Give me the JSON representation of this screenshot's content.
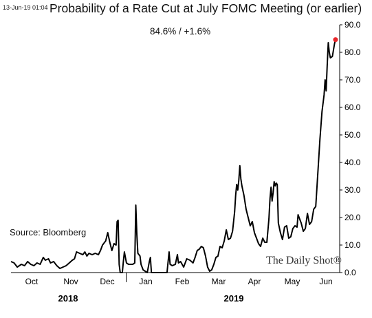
{
  "timestamp": "13-Jun-19 01:04",
  "title": "Probability of a Rate Cut at July FOMC Meeting (or earlier)",
  "subtitle": "84.6%  /  +1.6%",
  "source": "Source: Bloomberg",
  "brand": "The Daily Shot®",
  "colors": {
    "line": "#000000",
    "latest_marker": "#e8262b",
    "axis": "#000000"
  },
  "chart_data": {
    "type": "line",
    "title": "Probability of a Rate Cut at July FOMC Meeting (or earlier)",
    "xlabel": "",
    "ylabel": "",
    "y_axis_position": "right",
    "ylim": [
      0,
      90
    ],
    "y_ticks": [
      "0.0",
      "10.0",
      "20.0",
      "30.0",
      "40.0",
      "50.0",
      "60.0",
      "70.0",
      "80.0",
      "90.0"
    ],
    "x_month_labels": [
      "Oct",
      "Nov",
      "Dec",
      "Jan",
      "Feb",
      "Mar",
      "Apr",
      "May",
      "Jun"
    ],
    "x_year_labels": [
      "2018",
      "2019"
    ],
    "grid": false,
    "latest_value": 84.6,
    "series": [
      {
        "values": [
          [
            0,
            4.0
          ],
          [
            3,
            3.5
          ],
          [
            6,
            2.0
          ],
          [
            10,
            3.0
          ],
          [
            13,
            2.5
          ],
          [
            16,
            4.0
          ],
          [
            19,
            3.0
          ],
          [
            22,
            2.5
          ],
          [
            25,
            3.5
          ],
          [
            28,
            3.0
          ],
          [
            31,
            5.5
          ],
          [
            33,
            4.5
          ],
          [
            36,
            5.0
          ],
          [
            38,
            3.5
          ],
          [
            41,
            4.0
          ],
          [
            44,
            2.5
          ],
          [
            47,
            1.5
          ],
          [
            50,
            2.0
          ],
          [
            53,
            2.5
          ],
          [
            56,
            3.5
          ],
          [
            59,
            4.5
          ],
          [
            61,
            5.0
          ],
          [
            63,
            7.5
          ],
          [
            66,
            7.0
          ],
          [
            69,
            6.5
          ],
          [
            71,
            7.5
          ],
          [
            73,
            6.0
          ],
          [
            75,
            7.0
          ],
          [
            78,
            6.5
          ],
          [
            81,
            7.0
          ],
          [
            84,
            6.5
          ],
          [
            86,
            8.0
          ],
          [
            88,
            10.0
          ],
          [
            91,
            11.5
          ],
          [
            93,
            14.5
          ],
          [
            95,
            11.0
          ],
          [
            97,
            8.0
          ],
          [
            99,
            10.5
          ],
          [
            101,
            10.0
          ],
          [
            102,
            18.5
          ],
          [
            103,
            19.0
          ],
          [
            104,
            3.0
          ],
          [
            105,
            0.0
          ],
          [
            107,
            0.0
          ],
          [
            108,
            4.0
          ],
          [
            109,
            7.5
          ],
          [
            111,
            3.5
          ],
          [
            113,
            3.0
          ],
          [
            115,
            3.0
          ],
          [
            117,
            3.0
          ],
          [
            119,
            3.5
          ],
          [
            120,
            24.5
          ],
          [
            121,
            14.0
          ],
          [
            122,
            7.0
          ],
          [
            124,
            6.0
          ],
          [
            125,
            3.0
          ],
          [
            127,
            1.0
          ],
          [
            129,
            0.5
          ],
          [
            131,
            0.0
          ],
          [
            133,
            4.0
          ],
          [
            134,
            5.5
          ],
          [
            135,
            0.0
          ],
          [
            140,
            0.0
          ],
          [
            145,
            0.0
          ],
          [
            150,
            0.0
          ],
          [
            152,
            7.5
          ],
          [
            153,
            3.0
          ],
          [
            155,
            2.5
          ],
          [
            158,
            3.0
          ],
          [
            160,
            6.5
          ],
          [
            161,
            3.5
          ],
          [
            163,
            4.0
          ],
          [
            166,
            2.0
          ],
          [
            169,
            5.0
          ],
          [
            172,
            4.5
          ],
          [
            175,
            3.5
          ],
          [
            177,
            5.5
          ],
          [
            179,
            8.0
          ],
          [
            181,
            8.5
          ],
          [
            183,
            9.5
          ],
          [
            185,
            9.0
          ],
          [
            187,
            6.0
          ],
          [
            189,
            2.0
          ],
          [
            191,
            0.5
          ],
          [
            193,
            1.0
          ],
          [
            195,
            3.0
          ],
          [
            197,
            5.5
          ],
          [
            199,
            6.0
          ],
          [
            201,
            9.5
          ],
          [
            203,
            9.0
          ],
          [
            205,
            11.5
          ],
          [
            207,
            15.5
          ],
          [
            209,
            12.0
          ],
          [
            211,
            12.5
          ],
          [
            213,
            15.0
          ],
          [
            215,
            22.0
          ],
          [
            216,
            28.0
          ],
          [
            217,
            32.0
          ],
          [
            218,
            30.0
          ],
          [
            219,
            33.5
          ],
          [
            220,
            38.8
          ],
          [
            221,
            34.0
          ],
          [
            222,
            31.5
          ],
          [
            224,
            28.0
          ],
          [
            226,
            23.0
          ],
          [
            228,
            20.0
          ],
          [
            230,
            17.0
          ],
          [
            232,
            18.5
          ],
          [
            234,
            14.5
          ],
          [
            236,
            12.5
          ],
          [
            238,
            10.5
          ],
          [
            240,
            9.5
          ],
          [
            242,
            12.5
          ],
          [
            244,
            11.0
          ],
          [
            246,
            11.0
          ],
          [
            248,
            19.5
          ],
          [
            249,
            27.0
          ],
          [
            250,
            31.0
          ],
          [
            251,
            26.0
          ],
          [
            252,
            29.0
          ],
          [
            253,
            33.0
          ],
          [
            254,
            31.5
          ],
          [
            255,
            32.5
          ],
          [
            256,
            32.0
          ],
          [
            257,
            18.0
          ],
          [
            259,
            14.5
          ],
          [
            261,
            12.0
          ],
          [
            263,
            16.5
          ],
          [
            265,
            17.0
          ],
          [
            267,
            12.5
          ],
          [
            269,
            13.0
          ],
          [
            271,
            16.0
          ],
          [
            273,
            17.0
          ],
          [
            275,
            16.5
          ],
          [
            276,
            21.0
          ],
          [
            277,
            20.0
          ],
          [
            279,
            18.0
          ],
          [
            281,
            15.0
          ],
          [
            283,
            16.0
          ],
          [
            285,
            21.5
          ],
          [
            287,
            17.5
          ],
          [
            289,
            18.5
          ],
          [
            291,
            23.0
          ],
          [
            293,
            24.0
          ],
          [
            295,
            36.0
          ],
          [
            297,
            48.5
          ],
          [
            299,
            58.5
          ],
          [
            301,
            64.5
          ],
          [
            302,
            70.0
          ],
          [
            303,
            66.0
          ],
          [
            304,
            75.0
          ],
          [
            305,
            83.5
          ],
          [
            306,
            80.0
          ],
          [
            307,
            78.0
          ],
          [
            309,
            78.5
          ],
          [
            311,
            83.0
          ],
          [
            312,
            84.6
          ]
        ]
      }
    ]
  }
}
